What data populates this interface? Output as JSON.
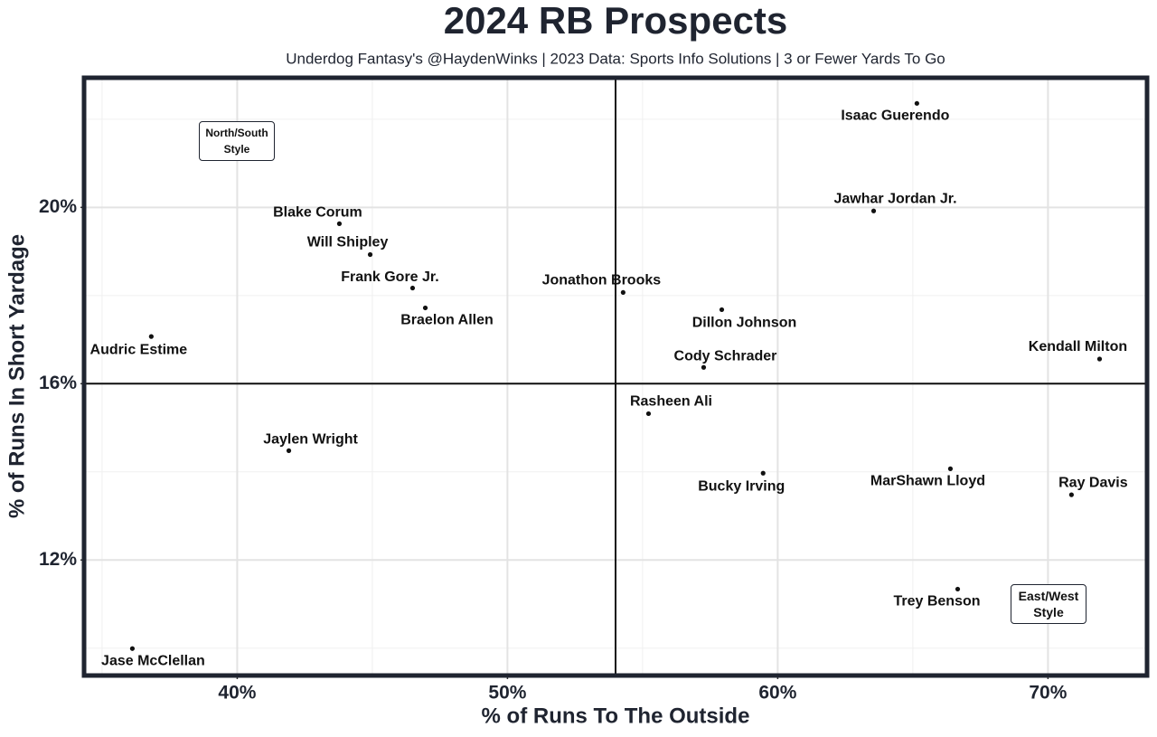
{
  "chart_data": {
    "type": "scatter",
    "title": "2024 RB Prospects",
    "subtitle": "Underdog Fantasy's @HaydenWinks | 2023 Data: Sports Info Solutions | 3 or Fewer Yards To Go",
    "x_label": "% of Runs To The Outside",
    "y_label": "% of Runs In Short Yardage",
    "xlim": [
      34.4,
      73.6
    ],
    "ylim": [
      9.42,
      22.9
    ],
    "xticks": [
      {
        "value": 40,
        "label": "40%"
      },
      {
        "value": 50,
        "label": "50%"
      },
      {
        "value": 60,
        "label": "60%"
      },
      {
        "value": 70,
        "label": "70%"
      }
    ],
    "yticks": [
      {
        "value": 12,
        "label": "12%"
      },
      {
        "value": 16,
        "label": "16%"
      },
      {
        "value": 20,
        "label": "20%"
      }
    ],
    "x_minor_ticks": [
      35,
      45,
      55,
      65
    ],
    "y_minor_ticks": [
      10,
      14,
      18,
      22
    ],
    "grid": true,
    "reference_lines": {
      "x": 54,
      "y": 16
    },
    "color": "#111111",
    "series": [
      {
        "labels": [
          "Isaac Guerendo",
          "Jawhar Jordan Jr.",
          "Blake Corum",
          "Will Shipley",
          "Frank Gore Jr.",
          "Braelon Allen",
          "Jonathon Brooks",
          "Dillon Johnson",
          "Audric Estime",
          "Cody Schrader",
          "Kendall Milton",
          "Rasheen Ali",
          "Jaylen Wright",
          "Bucky Irving",
          "MarShawn Lloyd",
          "Ray Davis",
          "Trey Benson",
          "Jase McClellan"
        ],
        "x": [
          65.15,
          63.55,
          43.78,
          44.92,
          46.49,
          46.96,
          54.28,
          57.93,
          36.82,
          57.26,
          71.91,
          55.22,
          41.91,
          59.46,
          66.39,
          70.87,
          66.66,
          36.12
        ],
        "values": [
          22.36,
          19.92,
          19.63,
          18.93,
          18.17,
          17.72,
          18.07,
          17.68,
          17.07,
          16.37,
          16.56,
          15.32,
          14.48,
          13.97,
          14.07,
          13.48,
          11.34,
          9.99
        ]
      }
    ],
    "annotations": [
      "North/South Style",
      "East/West Style"
    ]
  }
}
